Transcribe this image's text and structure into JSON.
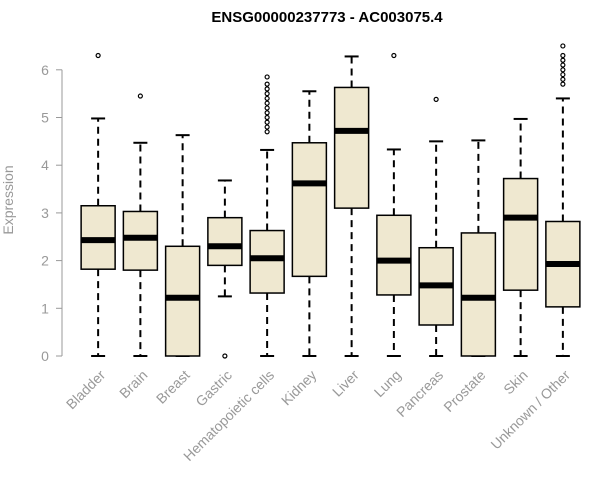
{
  "chart_data": {
    "type": "boxplot",
    "title": "ENSG00000237773 - AC003075.4",
    "ylabel": "Expression",
    "ylim": [
      0,
      6.5
    ],
    "yticks": [
      0,
      1,
      2,
      3,
      4,
      5,
      6
    ],
    "ytick_labels": [
      "0",
      "1",
      "2",
      "3",
      "4",
      "5",
      "6"
    ],
    "grid": false,
    "colors": {
      "box_fill": "#efe8d0",
      "box_stroke": "#000000",
      "axis": "#999999"
    },
    "categories": [
      "Bladder",
      "Brain",
      "Breast",
      "Gastric",
      "Hematopoietic cells",
      "Kidney",
      "Liver",
      "Lung",
      "Pancreas",
      "Prostate",
      "Skin",
      "Unknown / Other"
    ],
    "boxes": [
      {
        "name": "Bladder",
        "whisker_low": 0,
        "q1": 1.82,
        "median": 2.43,
        "q3": 3.15,
        "whisker_high": 4.98,
        "outliers": [
          6.3
        ]
      },
      {
        "name": "Brain",
        "whisker_low": 0,
        "q1": 1.8,
        "median": 2.48,
        "q3": 3.03,
        "whisker_high": 4.47,
        "outliers": [
          5.45
        ]
      },
      {
        "name": "Breast",
        "whisker_low": 0,
        "q1": 0,
        "median": 1.22,
        "q3": 2.3,
        "whisker_high": 4.63,
        "outliers": []
      },
      {
        "name": "Gastric",
        "whisker_low": 1.25,
        "q1": 1.9,
        "median": 2.3,
        "q3": 2.9,
        "whisker_high": 3.68,
        "outliers": [
          0
        ]
      },
      {
        "name": "Hematopoietic cells",
        "whisker_low": 0,
        "q1": 1.32,
        "median": 2.05,
        "q3": 2.63,
        "whisker_high": 4.32,
        "outliers": [
          4.7,
          4.8,
          4.9,
          5.0,
          5.1,
          5.2,
          5.3,
          5.4,
          5.5,
          5.6,
          5.7,
          5.85
        ]
      },
      {
        "name": "Kidney",
        "whisker_low": 0,
        "q1": 1.67,
        "median": 3.62,
        "q3": 4.47,
        "whisker_high": 5.55,
        "outliers": []
      },
      {
        "name": "Liver",
        "whisker_low": 0,
        "q1": 3.1,
        "median": 4.72,
        "q3": 5.63,
        "whisker_high": 6.28,
        "outliers": []
      },
      {
        "name": "Lung",
        "whisker_low": 0,
        "q1": 1.28,
        "median": 2.0,
        "q3": 2.95,
        "whisker_high": 4.33,
        "outliers": [
          6.3
        ]
      },
      {
        "name": "Pancreas",
        "whisker_low": 0,
        "q1": 0.65,
        "median": 1.48,
        "q3": 2.27,
        "whisker_high": 4.5,
        "outliers": [
          5.38
        ]
      },
      {
        "name": "Prostate",
        "whisker_low": 0,
        "q1": 0,
        "median": 1.22,
        "q3": 2.58,
        "whisker_high": 4.52,
        "outliers": []
      },
      {
        "name": "Skin",
        "whisker_low": 0,
        "q1": 1.38,
        "median": 2.9,
        "q3": 3.72,
        "whisker_high": 4.97,
        "outliers": []
      },
      {
        "name": "Unknown / Other",
        "whisker_low": 0,
        "q1": 1.03,
        "median": 1.93,
        "q3": 2.82,
        "whisker_high": 5.4,
        "outliers": [
          5.7,
          5.8,
          5.9,
          6.0,
          6.1,
          6.2,
          6.3,
          6.5
        ]
      }
    ]
  }
}
